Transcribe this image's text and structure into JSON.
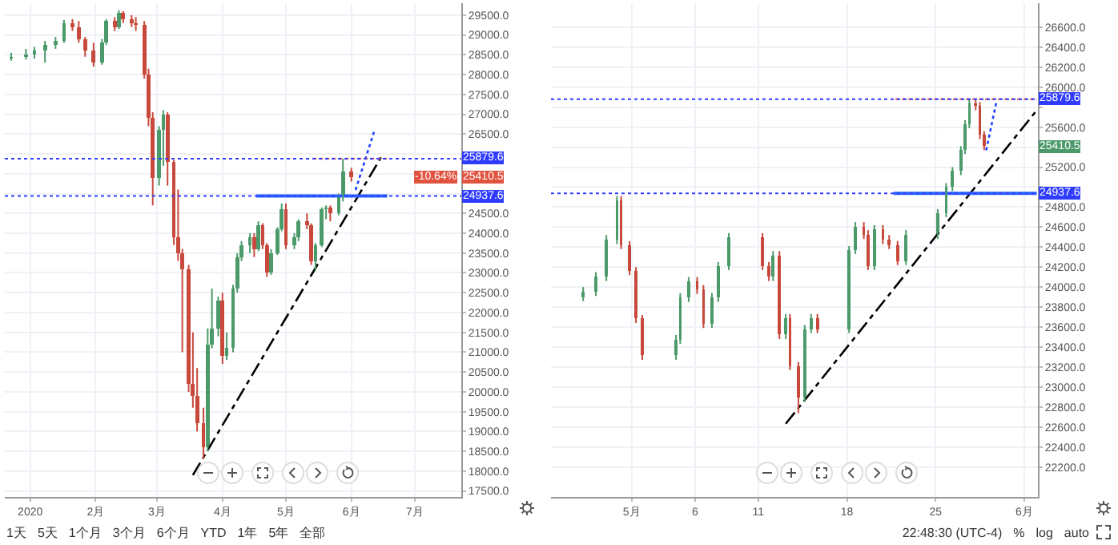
{
  "chart_data": [
    {
      "type": "candlestick",
      "x": [
        "2019-12-23",
        "2019-12-30",
        "2020-01-03",
        "2020-01-08",
        "2020-01-13",
        "2020-01-17",
        "2020-01-21",
        "2020-01-24",
        "2020-01-27",
        "2020-01-31",
        "2020-02-04",
        "2020-02-06",
        "2020-02-10",
        "2020-02-12",
        "2020-02-14",
        "2020-02-18",
        "2020-02-20",
        "2020-02-24",
        "2020-02-26",
        "2020-02-28",
        "2020-03-02",
        "2020-03-04",
        "2020-03-06",
        "2020-03-09",
        "2020-03-11",
        "2020-03-13",
        "2020-03-16",
        "2020-03-18",
        "2020-03-20",
        "2020-03-23",
        "2020-03-25",
        "2020-03-27",
        "2020-03-30",
        "2020-04-01",
        "2020-04-03",
        "2020-04-06",
        "2020-04-08",
        "2020-04-10",
        "2020-04-14",
        "2020-04-16",
        "2020-04-18",
        "2020-04-20",
        "2020-04-22",
        "2020-04-24",
        "2020-04-27",
        "2020-04-29",
        "2020-05-01",
        "2020-05-05",
        "2020-05-07",
        "2020-05-11",
        "2020-05-13",
        "2020-05-15",
        "2020-05-18",
        "2020-05-20",
        "2020-05-22",
        "2020-05-26",
        "2020-05-28",
        "2020-06-01"
      ],
      "ohlc": [
        [
          28400,
          28550,
          28350,
          28450
        ],
        [
          28450,
          28650,
          28380,
          28500
        ],
        [
          28500,
          28700,
          28400,
          28600
        ],
        [
          28600,
          28850,
          28300,
          28750
        ],
        [
          28750,
          28950,
          28650,
          28850
        ],
        [
          28850,
          29380,
          28800,
          29300
        ],
        [
          29300,
          29400,
          29100,
          29200
        ],
        [
          29200,
          29350,
          28800,
          28900
        ],
        [
          28900,
          28950,
          28450,
          28600
        ],
        [
          28600,
          28800,
          28200,
          28300
        ],
        [
          28300,
          28900,
          28250,
          28800
        ],
        [
          28800,
          29400,
          28750,
          29350
        ],
        [
          29350,
          29450,
          29100,
          29200
        ],
        [
          29200,
          29620,
          29150,
          29550
        ],
        [
          29550,
          29600,
          29300,
          29400
        ],
        [
          29400,
          29500,
          29200,
          29300
        ],
        [
          29300,
          29450,
          29100,
          29250
        ],
        [
          29250,
          29350,
          27900,
          28000
        ],
        [
          28000,
          28150,
          26700,
          26900
        ],
        [
          26900,
          27050,
          24700,
          25400
        ],
        [
          25400,
          26700,
          25200,
          26600
        ],
        [
          26600,
          27100,
          25700,
          27000
        ],
        [
          27000,
          27050,
          25200,
          25800
        ],
        [
          25800,
          25850,
          23700,
          23900
        ],
        [
          23900,
          25100,
          23300,
          23500
        ],
        [
          23500,
          23600,
          21000,
          23100
        ],
        [
          23100,
          23200,
          20000,
          20200
        ],
        [
          20200,
          21500,
          19600,
          19900
        ],
        [
          19900,
          20600,
          19000,
          19200
        ],
        [
          19200,
          19600,
          18300,
          18600
        ],
        [
          18600,
          21600,
          18500,
          21200
        ],
        [
          21200,
          22600,
          21100,
          21600
        ],
        [
          21600,
          22400,
          21400,
          22300
        ],
        [
          22300,
          22500,
          20700,
          20900
        ],
        [
          20900,
          21500,
          20800,
          21100
        ],
        [
          21100,
          22700,
          21000,
          22600
        ],
        [
          22600,
          23500,
          22500,
          23400
        ],
        [
          23400,
          23800,
          23300,
          23700
        ],
        [
          23700,
          24000,
          23500,
          23900
        ],
        [
          23900,
          24000,
          23400,
          23600
        ],
        [
          23600,
          24300,
          23550,
          24200
        ],
        [
          24200,
          24250,
          23600,
          23700
        ],
        [
          23700,
          23750,
          22900,
          23000
        ],
        [
          23000,
          23600,
          22950,
          23500
        ],
        [
          23500,
          24150,
          23450,
          24100
        ],
        [
          24100,
          24750,
          24050,
          24600
        ],
        [
          24600,
          24750,
          23600,
          23700
        ],
        [
          23700,
          24000,
          23600,
          23900
        ],
        [
          23900,
          24350,
          23800,
          24300
        ],
        [
          24300,
          24500,
          24100,
          24200
        ],
        [
          24200,
          24250,
          23200,
          23300
        ],
        [
          23300,
          23750,
          23050,
          23700
        ],
        [
          23700,
          24650,
          23650,
          24600
        ],
        [
          24600,
          24700,
          24350,
          24650
        ],
        [
          24650,
          24700,
          24300,
          24500
        ],
        [
          24500,
          25000,
          24450,
          24900
        ],
        [
          24900,
          25879.6,
          24800,
          25550
        ],
        [
          25550,
          25650,
          25300,
          25410.5
        ]
      ],
      "series": [
        {
          "type": "line",
          "x": [
            "2020-03-18",
            "2020-06-15"
          ],
          "values": [
            17900,
            25910
          ],
          "color": "#000000",
          "line_style": "dashed"
        },
        {
          "type": "line",
          "x": [
            "2020-06-03",
            "2020-06-12"
          ],
          "values": [
            25090,
            26610
          ],
          "color": "#2040ff",
          "line_style": "dotted"
        },
        {
          "type": "line",
          "x": [
            "2020-04-17",
            "2020-06-18"
          ],
          "values": [
            24937.6,
            24937.6
          ],
          "color": "#2962ff",
          "line_style": "solid"
        },
        {
          "type": "line",
          "x": [
            "2020-05-14",
            "2020-06-18"
          ],
          "values": [
            25879.6,
            25879.6
          ],
          "color": "#e57373",
          "line_style": "dotted"
        }
      ],
      "xlim": [
        "2019-12-20",
        "2020-07-23"
      ],
      "xticks": [
        {
          "value": "2020-01-01",
          "label": "2020"
        },
        {
          "value": "2020-02-01",
          "label": "2月"
        },
        {
          "value": "2020-03-01",
          "label": "3月"
        },
        {
          "value": "2020-04-01",
          "label": "4月"
        },
        {
          "value": "2020-05-01",
          "label": "5月"
        },
        {
          "value": "2020-06-01",
          "label": "6月"
        },
        {
          "value": "2020-07-01",
          "label": "7月"
        }
      ],
      "ylim": [
        17350,
        29800
      ],
      "yticks": [
        {
          "value": 17500,
          "label": "17500.0"
        },
        {
          "value": 18000,
          "label": "18000.0"
        },
        {
          "value": 18500,
          "label": "18500.0"
        },
        {
          "value": 19000,
          "label": "19000.0"
        },
        {
          "value": 19500,
          "label": "19500.0"
        },
        {
          "value": 20000,
          "label": "20000.0"
        },
        {
          "value": 20500,
          "label": "20500.0"
        },
        {
          "value": 21000,
          "label": "21000.0"
        },
        {
          "value": 21500,
          "label": "21500.0"
        },
        {
          "value": 22000,
          "label": "22000.0"
        },
        {
          "value": 22500,
          "label": "22500.0"
        },
        {
          "value": 23000,
          "label": "23000.0"
        },
        {
          "value": 23500,
          "label": "23500.0"
        },
        {
          "value": 24000,
          "label": "24000.0"
        },
        {
          "value": 24500,
          "label": "24500.0"
        },
        {
          "value": 25000,
          "label": null
        },
        {
          "value": 25500,
          "label": null
        },
        {
          "value": 26000,
          "label": null
        },
        {
          "value": 26500,
          "label": "26500.0"
        },
        {
          "value": 27000,
          "label": "27000.0"
        },
        {
          "value": 27500,
          "label": "27500.0"
        },
        {
          "value": 28000,
          "label": "28000.0"
        },
        {
          "value": 28500,
          "label": "28500.0"
        },
        {
          "value": 29000,
          "label": "29000.0"
        },
        {
          "value": 29500,
          "label": "29500.0"
        }
      ],
      "grid": true,
      "ref_lines": [
        {
          "axis": "y",
          "value": 25879.6,
          "label": "25879.6",
          "color": "#2f3cff",
          "line_style": "dotted"
        },
        {
          "axis": "y",
          "value": 24937.6,
          "label": "24937.6",
          "color": "#2f3cff",
          "line_style": "dotted"
        }
      ],
      "annotations": [
        {
          "text": "-10.64%"
        },
        {
          "text": "25410.5"
        },
        "1天",
        "5天",
        "1个月",
        "3个月",
        "6个月",
        "YTD",
        "1年",
        "5年",
        "全部"
      ]
    },
    {
      "type": "candlestick",
      "x": [
        "2020-04-27T04:00",
        "2020-04-28T04:00",
        "2020-04-29T00:00",
        "2020-04-29T20:00",
        "2020-04-30T04:00",
        "2020-04-30T20:00",
        "2020-05-01T08:00",
        "2020-05-01T20:00",
        "2020-05-04T12:00",
        "2020-05-04T20:00",
        "2020-05-05T12:00",
        "2020-05-06T04:00",
        "2020-05-06T16:00",
        "2020-05-07T08:00",
        "2020-05-07T20:00",
        "2020-05-08T16:00",
        "2020-05-11T08:00",
        "2020-05-11T20:00",
        "2020-05-12T04:00",
        "2020-05-12T16:00",
        "2020-05-13T04:00",
        "2020-05-13T12:00",
        "2020-05-14T04:00",
        "2020-05-14T16:00",
        "2020-05-15T04:00",
        "2020-05-15T16:00",
        "2020-05-18T04:00",
        "2020-05-18T16:00",
        "2020-05-19T08:00",
        "2020-05-19T16:00",
        "2020-05-20T04:00",
        "2020-05-20T20:00",
        "2020-05-21T08:00",
        "2020-05-22T00:00",
        "2020-05-22T16:00",
        "2020-05-25T04:00",
        "2020-05-25T20:00",
        "2020-05-26T08:00",
        "2020-05-27T00:00",
        "2020-05-27T08:00",
        "2020-05-27T16:00",
        "2020-05-28T04:00",
        "2020-05-28T12:00",
        "2020-05-28T20:00"
      ],
      "ohlc": [
        [
          23900,
          24000,
          23860,
          23950
        ],
        [
          23950,
          24150,
          23910,
          24105
        ],
        [
          24105,
          24520,
          24060,
          24475
        ],
        [
          24475,
          24910,
          24430,
          24870
        ],
        [
          24870,
          24910,
          24380,
          24420
        ],
        [
          24420,
          24460,
          24120,
          24160
        ],
        [
          24160,
          24200,
          23640,
          23685
        ],
        [
          23685,
          23720,
          23270,
          23316
        ],
        [
          23316,
          23520,
          23270,
          23475
        ],
        [
          23475,
          23940,
          23430,
          23895
        ],
        [
          23895,
          24100,
          23850,
          24055
        ],
        [
          24055,
          24100,
          23930,
          23975
        ],
        [
          23975,
          24020,
          23590,
          23630
        ],
        [
          23630,
          23940,
          23590,
          23895
        ],
        [
          23895,
          24250,
          23850,
          24210
        ],
        [
          24210,
          24540,
          24170,
          24500
        ],
        [
          24500,
          24540,
          24170,
          24210
        ],
        [
          24210,
          24250,
          24060,
          24105
        ],
        [
          24105,
          24360,
          24060,
          24315
        ],
        [
          24315,
          24360,
          23480,
          23525
        ],
        [
          23525,
          23730,
          23480,
          23685
        ],
        [
          23685,
          23730,
          23170,
          23210
        ],
        [
          23210,
          23250,
          22738,
          22895
        ],
        [
          22895,
          23620,
          22850,
          23580
        ],
        [
          23580,
          23730,
          23540,
          23685
        ],
        [
          23685,
          23730,
          23540,
          23580
        ],
        [
          23580,
          24410,
          23540,
          24370
        ],
        [
          24370,
          24650,
          24330,
          24605
        ],
        [
          24605,
          24650,
          24480,
          24525
        ],
        [
          24525,
          24570,
          24170,
          24210
        ],
        [
          24210,
          24620,
          24170,
          24580
        ],
        [
          24580,
          24620,
          24430,
          24475
        ],
        [
          24475,
          24520,
          24380,
          24420
        ],
        [
          24420,
          24460,
          24220,
          24260
        ],
        [
          24260,
          24570,
          24220,
          24525
        ],
        [
          24525,
          24780,
          24480,
          24740
        ],
        [
          24740,
          25040,
          24700,
          25000
        ],
        [
          25000,
          25200,
          24960,
          25160
        ],
        [
          25160,
          25410,
          25120,
          25370
        ],
        [
          25370,
          25670,
          25330,
          25630
        ],
        [
          25630,
          25879.6,
          25590,
          25840
        ],
        [
          25840,
          25870,
          25770,
          25815
        ],
        [
          25815,
          25850,
          25480,
          25525
        ],
        [
          25525,
          25560,
          25370,
          25410.5
        ]
      ],
      "series": [
        {
          "type": "line",
          "x": [
            "2020-05-13T04:00",
            "2020-06-02T00:00"
          ],
          "values": [
            22632,
            25770
          ],
          "color": "#000000",
          "line_style": "dashed"
        },
        {
          "type": "line",
          "x": [
            "2020-05-29T00:00",
            "2020-05-29T20:00"
          ],
          "values": [
            25369,
            25870
          ],
          "color": "#2040ff",
          "line_style": "dotted"
        },
        {
          "type": "line",
          "x": [
            "2020-05-21T16:00",
            "2020-06-02T00:00"
          ],
          "values": [
            24937.6,
            24937.6
          ],
          "color": "#2962ff",
          "line_style": "solid"
        },
        {
          "type": "line",
          "x": [
            "2020-05-21T20:00",
            "2020-06-02T00:00"
          ],
          "values": [
            25879.6,
            25879.6
          ],
          "color": "#e57373",
          "line_style": "dotted"
        }
      ],
      "xlim": [
        "2020-04-24T15:00",
        "2020-06-02T02:00"
      ],
      "xticks": [
        {
          "value": "2020-05-01",
          "label": "5月"
        },
        {
          "value": "2020-05-06",
          "label": "6"
        },
        {
          "value": "2020-05-11",
          "label": "11"
        },
        {
          "value": "2020-05-18",
          "label": "18"
        },
        {
          "value": "2020-05-25",
          "label": "25"
        },
        {
          "value": "2020-06-01",
          "label": "6月"
        }
      ],
      "ylim": [
        21900,
        26840
      ],
      "yticks": [
        {
          "value": 22200,
          "label": "22200.0"
        },
        {
          "value": 22400,
          "label": "22400.0"
        },
        {
          "value": 22600,
          "label": "22600.0"
        },
        {
          "value": 22800,
          "label": "22800.0"
        },
        {
          "value": 23000,
          "label": "23000.0"
        },
        {
          "value": 23200,
          "label": "23200.0"
        },
        {
          "value": 23400,
          "label": "23400.0"
        },
        {
          "value": 23600,
          "label": "23600.0"
        },
        {
          "value": 23800,
          "label": "23800.0"
        },
        {
          "value": 24000,
          "label": "24000.0"
        },
        {
          "value": 24200,
          "label": "24200.0"
        },
        {
          "value": 24400,
          "label": "24400.0"
        },
        {
          "value": 24600,
          "label": "24600.0"
        },
        {
          "value": 24800,
          "label": "24800.0"
        },
        {
          "value": 25000,
          "label": null
        },
        {
          "value": 25200,
          "label": "25200.0"
        },
        {
          "value": 25400,
          "label": null
        },
        {
          "value": 25600,
          "label": "25600.0"
        },
        {
          "value": 25800,
          "label": null
        },
        {
          "value": 26000,
          "label": "26000.0"
        },
        {
          "value": 26200,
          "label": "26200.0"
        },
        {
          "value": 26400,
          "label": "26400.0"
        },
        {
          "value": 26600,
          "label": "26600.0"
        }
      ],
      "grid": true,
      "ref_lines": [
        {
          "axis": "y",
          "value": 25879.6,
          "label": "25879.6",
          "color": "#2f3cff",
          "line_style": "dotted"
        },
        {
          "axis": "y",
          "value": 24937.6,
          "label": "24937.6",
          "color": "#2f3cff",
          "line_style": "dotted"
        }
      ],
      "annotations": [
        {
          "text": "25410.5"
        },
        "22:48:30 (UTC-4)",
        "%",
        "log",
        "auto"
      ]
    }
  ]
}
